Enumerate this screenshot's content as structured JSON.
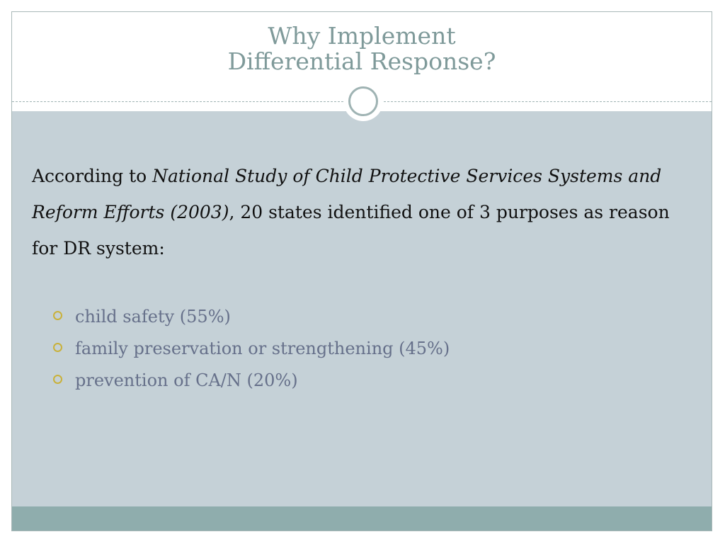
{
  "slide": {
    "title_line1": "Why Implement",
    "title_line2": "Differential Response?",
    "intro": {
      "prefix": "According to ",
      "citation": "National Study of Child Protective Services Systems and Reform Efforts (2003)",
      "suffix": ", 20 states identified one of 3 purposes as reason for DR system:"
    },
    "bullets": [
      "child safety (55%)",
      "family preservation or strengthening (45%)",
      "prevention of CA/N (20%)"
    ],
    "bullet_icon": "hollow-circle-icon",
    "colors": {
      "title": "#7f9a9a",
      "body_background": "#c5d1d7",
      "bullet_text": "#66708a",
      "bullet_marker": "#c9b13a",
      "footer_band": "#8fadad"
    }
  }
}
